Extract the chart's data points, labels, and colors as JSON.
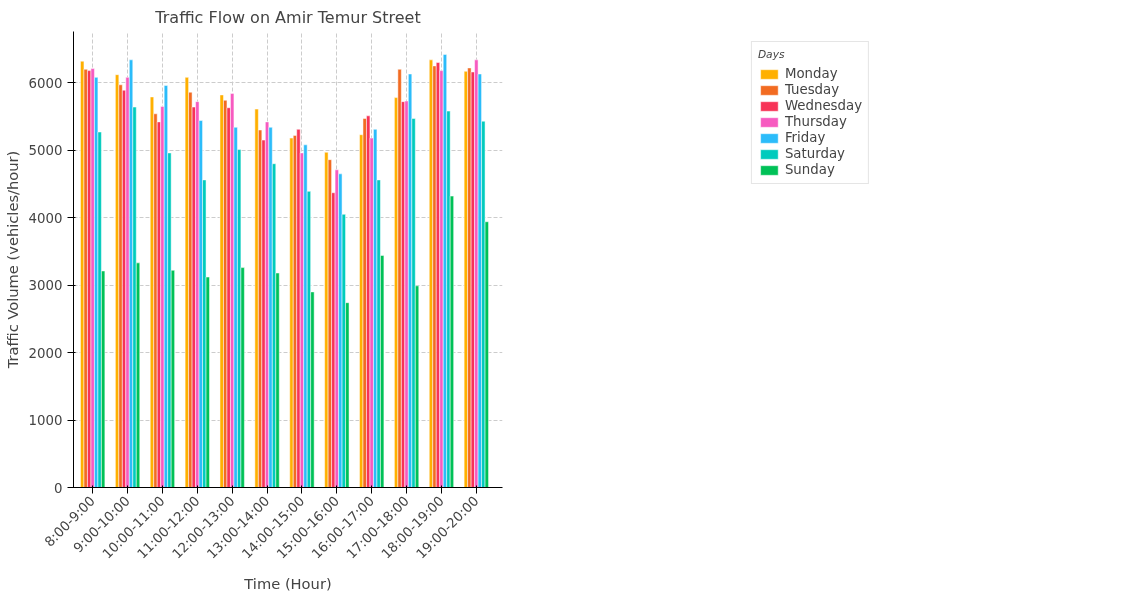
{
  "chart_data": {
    "type": "bar",
    "title": "Traffic Flow on Amir Temur Street",
    "xlabel": "Time (Hour)",
    "ylabel": "Traffic Volume (vehicles/hour)",
    "legend_title": "Days",
    "categories": [
      "8:00-9:00",
      "9:00-10:00",
      "10:00-11:00",
      "11:00-12:00",
      "12:00-13:00",
      "13:00-14:00",
      "14:00-15:00",
      "15:00-16:00",
      "16:00-17:00",
      "17:00-18:00",
      "18:00-19:00",
      "19:00-20:00"
    ],
    "series": [
      {
        "name": "Monday",
        "color": "#ffb000",
        "values": [
          6320,
          6120,
          5790,
          6080,
          5820,
          5610,
          5180,
          4970,
          5230,
          5780,
          6340,
          6170
        ]
      },
      {
        "name": "Tuesday",
        "color": "#f26b21",
        "values": [
          6200,
          5970,
          5540,
          5860,
          5740,
          5300,
          5220,
          4860,
          5470,
          6200,
          6250,
          6220
        ]
      },
      {
        "name": "Wednesday",
        "color": "#f73357",
        "values": [
          6180,
          5890,
          5420,
          5640,
          5630,
          5150,
          5310,
          4370,
          5510,
          5720,
          6300,
          6160
        ]
      },
      {
        "name": "Thursday",
        "color": "#f75ac0",
        "values": [
          6210,
          6080,
          5650,
          5720,
          5840,
          5420,
          4960,
          4710,
          5180,
          5730,
          6180,
          6340
        ]
      },
      {
        "name": "Friday",
        "color": "#2bbcfa",
        "values": [
          6080,
          6340,
          5960,
          5440,
          5340,
          5340,
          5080,
          4650,
          5310,
          6130,
          6420,
          6130
        ]
      },
      {
        "name": "Saturday",
        "color": "#00cbbd",
        "values": [
          5270,
          5640,
          4960,
          4560,
          5010,
          4800,
          4390,
          4050,
          4560,
          5470,
          5580,
          5430
        ]
      },
      {
        "name": "Sunday",
        "color": "#00c157",
        "values": [
          3210,
          3330,
          3220,
          3120,
          3260,
          3180,
          2900,
          2740,
          3440,
          2990,
          4320,
          3940
        ]
      }
    ],
    "ylim": [
      0,
      6760
    ],
    "yticks": [
      0,
      1000,
      2000,
      3000,
      4000,
      5000,
      6000
    ],
    "grid": true,
    "legend": "top right"
  }
}
